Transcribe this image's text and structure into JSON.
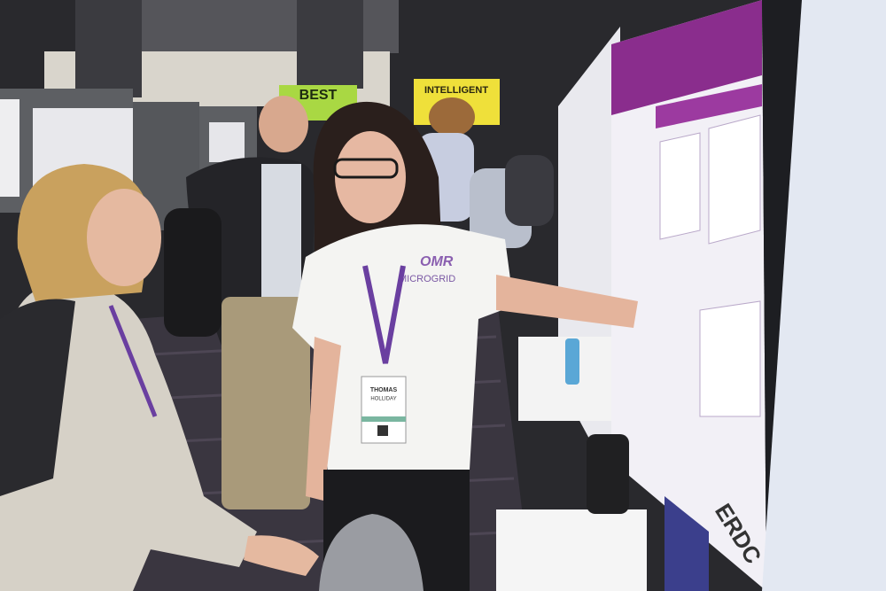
{
  "signs": [
    {
      "text": "BEST"
    },
    {
      "text": "INTELLIGENT"
    }
  ],
  "shirt": {
    "logo": "OMR",
    "text": "MICROGRID"
  },
  "badge": {
    "first_name": "THOMAS",
    "last_name": "HOLLIDAY"
  },
  "poster": {
    "logo": "ERDC"
  }
}
